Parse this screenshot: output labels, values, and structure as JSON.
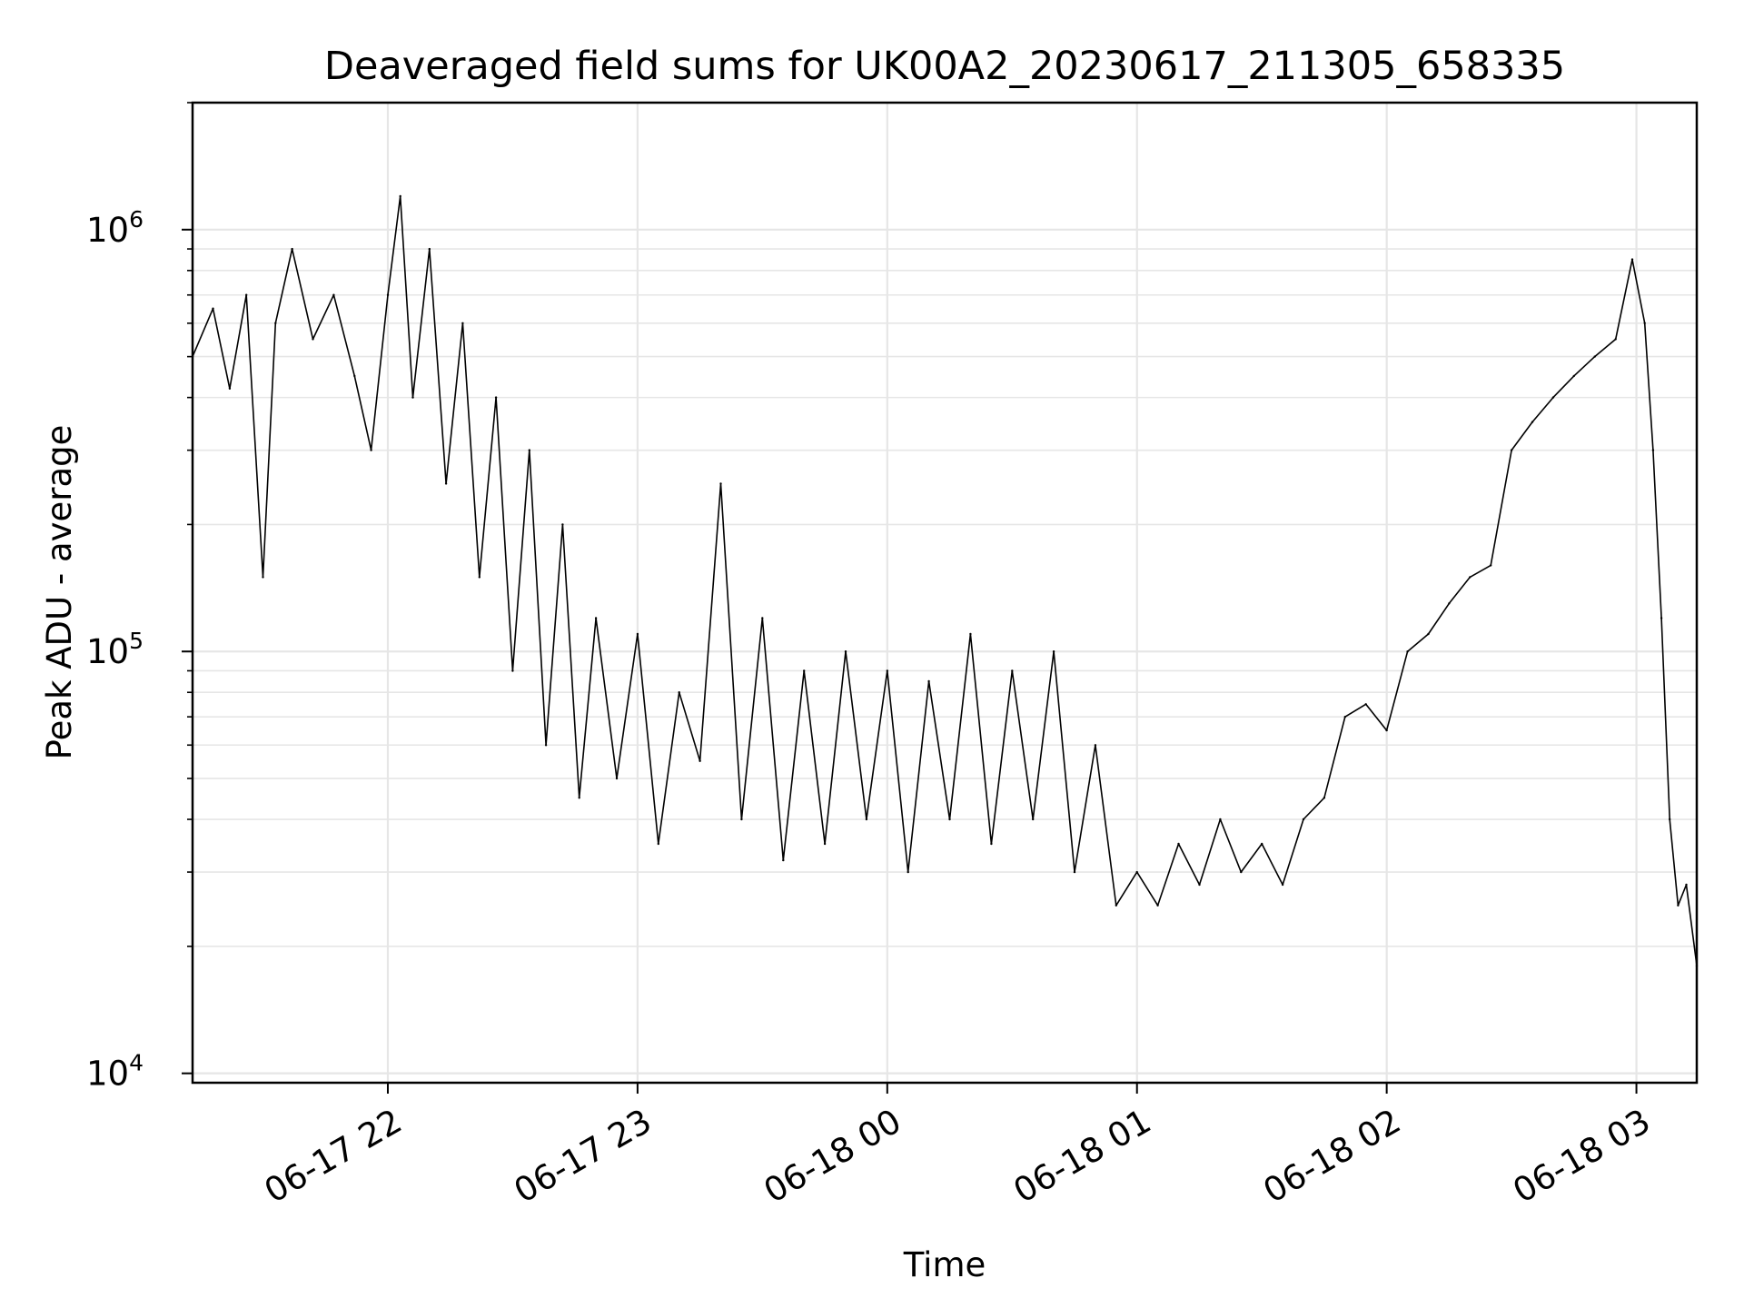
{
  "chart_data": {
    "type": "line",
    "title": "Deaveraged field sums for UK00A2_20230617_211305_658335",
    "xlabel": "Time",
    "ylabel": "Peak ADU - average",
    "yscale": "log",
    "ylim": [
      9500,
      2000000
    ],
    "xlim": [
      "2023-06-17T21:13:05",
      "2023-06-18T03:14:30"
    ],
    "grid": true,
    "line_color": "#000000",
    "x_ticks": [
      {
        "t": "2023-06-17T22:00:00",
        "label": "06-17 22"
      },
      {
        "t": "2023-06-17T23:00:00",
        "label": "06-17 23"
      },
      {
        "t": "2023-06-18T00:00:00",
        "label": "06-18 00"
      },
      {
        "t": "2023-06-18T01:00:00",
        "label": "06-18 01"
      },
      {
        "t": "2023-06-18T02:00:00",
        "label": "06-18 02"
      },
      {
        "t": "2023-06-18T03:00:00",
        "label": "06-18 03"
      }
    ],
    "y_ticks": [
      {
        "value": 10000,
        "base": "10",
        "exp": "4"
      },
      {
        "value": 100000,
        "base": "10",
        "exp": "5"
      },
      {
        "value": 1000000,
        "base": "10",
        "exp": "6"
      }
    ],
    "series": [
      {
        "note_points": "approximate envelope read from the plot; x as timestamps, y in ADU",
        "points": [
          [
            "2023-06-17T21:13:05",
            500000
          ],
          [
            "2023-06-17T21:18:00",
            650000
          ],
          [
            "2023-06-17T21:22:00",
            420000
          ],
          [
            "2023-06-17T21:26:00",
            700000
          ],
          [
            "2023-06-17T21:30:00",
            150000
          ],
          [
            "2023-06-17T21:33:00",
            600000
          ],
          [
            "2023-06-17T21:37:00",
            900000
          ],
          [
            "2023-06-17T21:42:00",
            550000
          ],
          [
            "2023-06-17T21:47:00",
            700000
          ],
          [
            "2023-06-17T21:52:00",
            450000
          ],
          [
            "2023-06-17T21:56:00",
            300000
          ],
          [
            "2023-06-17T22:00:00",
            700000
          ],
          [
            "2023-06-17T22:03:00",
            1200000
          ],
          [
            "2023-06-17T22:06:00",
            400000
          ],
          [
            "2023-06-17T22:10:00",
            900000
          ],
          [
            "2023-06-17T22:14:00",
            250000
          ],
          [
            "2023-06-17T22:18:00",
            600000
          ],
          [
            "2023-06-17T22:22:00",
            150000
          ],
          [
            "2023-06-17T22:26:00",
            400000
          ],
          [
            "2023-06-17T22:30:00",
            90000
          ],
          [
            "2023-06-17T22:34:00",
            300000
          ],
          [
            "2023-06-17T22:38:00",
            60000
          ],
          [
            "2023-06-17T22:42:00",
            200000
          ],
          [
            "2023-06-17T22:46:00",
            45000
          ],
          [
            "2023-06-17T22:50:00",
            120000
          ],
          [
            "2023-06-17T22:55:00",
            50000
          ],
          [
            "2023-06-17T23:00:00",
            110000
          ],
          [
            "2023-06-17T23:05:00",
            35000
          ],
          [
            "2023-06-17T23:10:00",
            80000
          ],
          [
            "2023-06-17T23:15:00",
            55000
          ],
          [
            "2023-06-17T23:20:00",
            250000
          ],
          [
            "2023-06-17T23:25:00",
            40000
          ],
          [
            "2023-06-17T23:30:00",
            120000
          ],
          [
            "2023-06-17T23:35:00",
            32000
          ],
          [
            "2023-06-17T23:40:00",
            90000
          ],
          [
            "2023-06-17T23:45:00",
            35000
          ],
          [
            "2023-06-17T23:50:00",
            100000
          ],
          [
            "2023-06-17T23:55:00",
            40000
          ],
          [
            "2023-06-18T00:00:00",
            90000
          ],
          [
            "2023-06-18T00:05:00",
            30000
          ],
          [
            "2023-06-18T00:10:00",
            85000
          ],
          [
            "2023-06-18T00:15:00",
            40000
          ],
          [
            "2023-06-18T00:20:00",
            110000
          ],
          [
            "2023-06-18T00:25:00",
            35000
          ],
          [
            "2023-06-18T00:30:00",
            90000
          ],
          [
            "2023-06-18T00:35:00",
            40000
          ],
          [
            "2023-06-18T00:40:00",
            100000
          ],
          [
            "2023-06-18T00:45:00",
            30000
          ],
          [
            "2023-06-18T00:50:00",
            60000
          ],
          [
            "2023-06-18T00:55:00",
            25000
          ],
          [
            "2023-06-18T01:00:00",
            30000
          ],
          [
            "2023-06-18T01:05:00",
            25000
          ],
          [
            "2023-06-18T01:10:00",
            35000
          ],
          [
            "2023-06-18T01:15:00",
            28000
          ],
          [
            "2023-06-18T01:20:00",
            40000
          ],
          [
            "2023-06-18T01:25:00",
            30000
          ],
          [
            "2023-06-18T01:30:00",
            35000
          ],
          [
            "2023-06-18T01:35:00",
            28000
          ],
          [
            "2023-06-18T01:40:00",
            40000
          ],
          [
            "2023-06-18T01:45:00",
            45000
          ],
          [
            "2023-06-18T01:50:00",
            70000
          ],
          [
            "2023-06-18T01:55:00",
            75000
          ],
          [
            "2023-06-18T02:00:00",
            65000
          ],
          [
            "2023-06-18T02:05:00",
            100000
          ],
          [
            "2023-06-18T02:10:00",
            110000
          ],
          [
            "2023-06-18T02:15:00",
            130000
          ],
          [
            "2023-06-18T02:20:00",
            150000
          ],
          [
            "2023-06-18T02:25:00",
            160000
          ],
          [
            "2023-06-18T02:30:00",
            300000
          ],
          [
            "2023-06-18T02:35:00",
            350000
          ],
          [
            "2023-06-18T02:40:00",
            400000
          ],
          [
            "2023-06-18T02:45:00",
            450000
          ],
          [
            "2023-06-18T02:50:00",
            500000
          ],
          [
            "2023-06-18T02:55:00",
            550000
          ],
          [
            "2023-06-18T02:59:00",
            850000
          ],
          [
            "2023-06-18T03:02:00",
            600000
          ],
          [
            "2023-06-18T03:04:00",
            300000
          ],
          [
            "2023-06-18T03:06:00",
            120000
          ],
          [
            "2023-06-18T03:08:00",
            40000
          ],
          [
            "2023-06-18T03:10:00",
            25000
          ],
          [
            "2023-06-18T03:12:00",
            28000
          ],
          [
            "2023-06-18T03:14:30",
            18000
          ]
        ]
      }
    ]
  }
}
